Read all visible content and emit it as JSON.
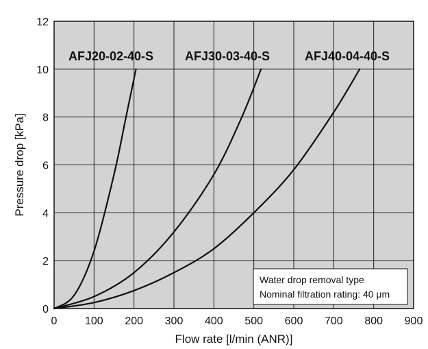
{
  "colors": {
    "plot_background": "#d3d3d3",
    "grid": "#1e1e1e",
    "curve": "#111111",
    "frame": "#111111",
    "note_background": "#ffffff"
  },
  "chart_data": {
    "type": "line",
    "title": "",
    "xlabel": "Flow rate [l/min (ANR)]",
    "ylabel": "Pressure drop [kPa]",
    "xlim": [
      0,
      900
    ],
    "ylim": [
      0,
      12
    ],
    "xticks": [
      0,
      100,
      200,
      300,
      400,
      500,
      600,
      700,
      800,
      900
    ],
    "yticks": [
      0,
      2,
      4,
      6,
      8,
      10,
      12
    ],
    "grid": true,
    "series": [
      {
        "name": "AFJ20-02-40-S",
        "points": [
          [
            0,
            0
          ],
          [
            50,
            0.55
          ],
          [
            100,
            2.4
          ],
          [
            150,
            5.6
          ],
          [
            180,
            8.0
          ],
          [
            205,
            10.0
          ]
        ]
      },
      {
        "name": "AFJ30-03-40-S",
        "points": [
          [
            0,
            0
          ],
          [
            100,
            0.5
          ],
          [
            200,
            1.5
          ],
          [
            300,
            3.2
          ],
          [
            400,
            5.6
          ],
          [
            470,
            8.0
          ],
          [
            518,
            10.0
          ]
        ]
      },
      {
        "name": "AFJ40-04-40-S",
        "points": [
          [
            0,
            0
          ],
          [
            100,
            0.25
          ],
          [
            200,
            0.75
          ],
          [
            300,
            1.5
          ],
          [
            400,
            2.5
          ],
          [
            500,
            4.0
          ],
          [
            600,
            5.8
          ],
          [
            700,
            8.2
          ],
          [
            765,
            10.0
          ]
        ]
      }
    ],
    "annotation": {
      "lines": [
        "Water drop removal type",
        "Nominal filtration rating: 40 μm"
      ],
      "placement": "bottom-right"
    }
  }
}
